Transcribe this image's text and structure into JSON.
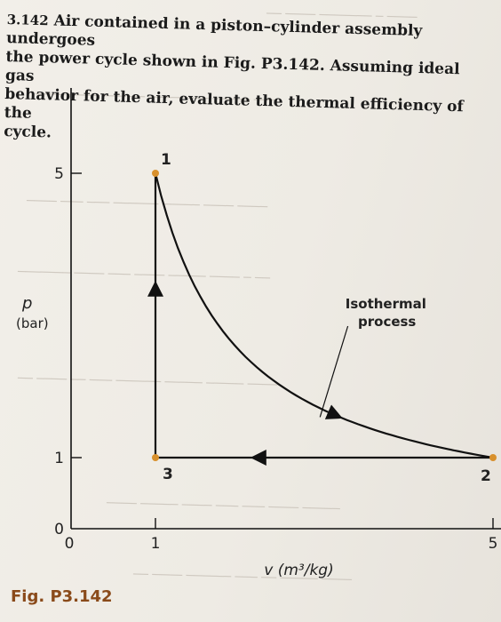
{
  "problem": {
    "number": "3.142",
    "lines": [
      "Air contained in a piston–cylinder assembly undergoes",
      "the power cycle shown in Fig. P3.142. Assuming ideal gas",
      "behavior for the air, evaluate the thermal efficiency of the",
      "cycle."
    ]
  },
  "figure_label": "Fig. P3.142",
  "chart_data": {
    "type": "line",
    "xlabel": "v (m³/kg)",
    "ylabel_p": "p",
    "ylabel_unit": "(bar)",
    "x_ticks": [
      "0",
      "1",
      "5"
    ],
    "y_ticks": [
      "0",
      "1",
      "5"
    ],
    "xlim": [
      0,
      5.5
    ],
    "ylim": [
      0,
      6.2
    ],
    "states": [
      {
        "label": "1",
        "v": 1,
        "p": 5
      },
      {
        "label": "2",
        "v": 5,
        "p": 1
      },
      {
        "label": "3",
        "v": 1,
        "p": 1
      }
    ],
    "process_label_line1": "Isothermal",
    "process_label_line2": "process",
    "point_color": "#d8902c",
    "line_color": "#111111"
  }
}
